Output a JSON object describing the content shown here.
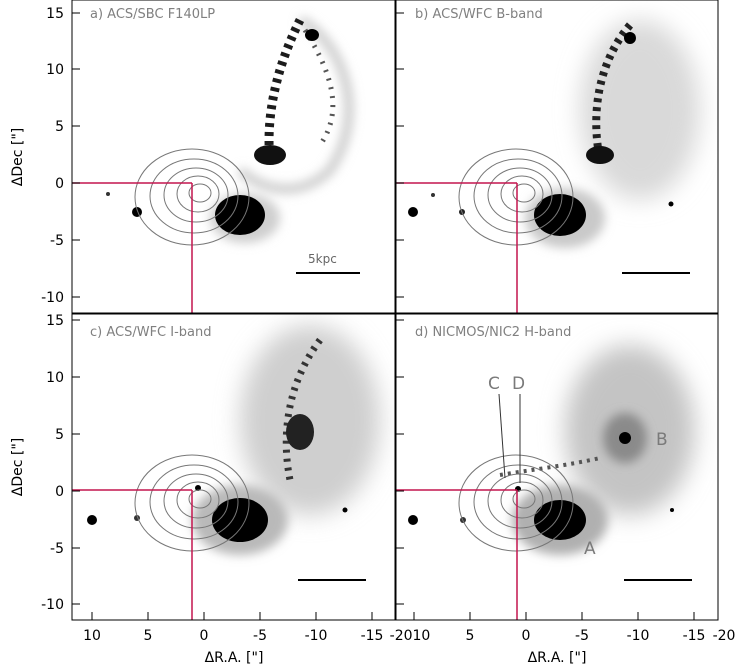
{
  "panels": [
    {
      "id": "a",
      "label": "a) ACS/SBC F140LP"
    },
    {
      "id": "b",
      "label": "b) ACS/WFC B-band"
    },
    {
      "id": "c",
      "label": "c) ACS/WFC I-band"
    },
    {
      "id": "d",
      "label": "d) NICMOS/NIC2 H-band"
    }
  ],
  "axes": {
    "xlabel": "ΔR.A. [\"]",
    "ylabel": "ΔDec [\"]",
    "xticks": [
      "10",
      "5",
      "0",
      "-5",
      "-10",
      "-15",
      "-20"
    ],
    "yticks": [
      "15",
      "10",
      "5",
      "0",
      "-5",
      "-10"
    ],
    "shared_xtick_label": "-2010"
  },
  "scale_bar": {
    "label": "5kpc"
  },
  "annotations": {
    "A": "A",
    "B": "B",
    "C": "C",
    "D": "D"
  },
  "colors": {
    "crosshair": "#c4154e",
    "contour": "#777777",
    "galaxy": "#000000",
    "frame": "#000000"
  }
}
